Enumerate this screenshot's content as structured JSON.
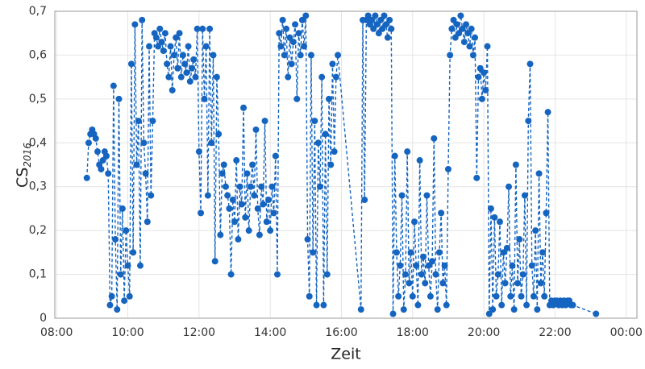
{
  "chart_data": {
    "type": "line",
    "x_label": "Zeit",
    "y_label": "CS",
    "y_label_subscript": "2016",
    "xlim": [
      7.95,
      24.3
    ],
    "ylim": [
      0,
      0.7
    ],
    "xticks": [
      {
        "value": 8,
        "label": "08:00"
      },
      {
        "value": 10,
        "label": "10:00"
      },
      {
        "value": 12,
        "label": "12:00"
      },
      {
        "value": 14,
        "label": "14:00"
      },
      {
        "value": 16,
        "label": "16:00"
      },
      {
        "value": 18,
        "label": "18:00"
      },
      {
        "value": 20,
        "label": "20:00"
      },
      {
        "value": 22,
        "label": "22:00"
      },
      {
        "value": 24,
        "label": "00:00"
      }
    ],
    "yticks": [
      0,
      {
        "value": 0.1,
        "label": "0,1"
      },
      {
        "value": 0.2,
        "label": "0,2"
      },
      {
        "value": 0.3,
        "label": "0,3"
      },
      {
        "value": 0.4,
        "label": "0,4"
      },
      {
        "value": 0.5,
        "label": "0,5"
      },
      {
        "value": 0.6,
        "label": "0,6"
      },
      {
        "value": 0.7,
        "label": "0,7"
      }
    ],
    "grid": true,
    "x": [
      8.85,
      8.9,
      8.95,
      9,
      9.05,
      9.1,
      9.15,
      9.2,
      9.25,
      9.3,
      9.35,
      9.4,
      9.45,
      9.5,
      9.55,
      9.6,
      9.65,
      9.7,
      9.75,
      9.8,
      9.85,
      9.9,
      9.95,
      10,
      10.05,
      10.1,
      10.15,
      10.2,
      10.25,
      10.3,
      10.35,
      10.4,
      10.45,
      10.5,
      10.55,
      10.6,
      10.65,
      10.7,
      10.75,
      10.8,
      10.85,
      10.9,
      10.95,
      11,
      11.05,
      11.1,
      11.15,
      11.2,
      11.25,
      11.3,
      11.35,
      11.4,
      11.45,
      11.5,
      11.55,
      11.6,
      11.65,
      11.7,
      11.75,
      11.8,
      11.85,
      11.9,
      11.95,
      12,
      12.05,
      12.1,
      12.15,
      12.2,
      12.25,
      12.3,
      12.35,
      12.4,
      12.45,
      12.5,
      12.55,
      12.6,
      12.65,
      12.7,
      12.75,
      12.8,
      12.85,
      12.9,
      12.95,
      13,
      13.05,
      13.1,
      13.15,
      13.2,
      13.25,
      13.3,
      13.35,
      13.4,
      13.45,
      13.5,
      13.55,
      13.6,
      13.65,
      13.7,
      13.75,
      13.8,
      13.85,
      13.9,
      13.95,
      14,
      14.05,
      14.1,
      14.15,
      14.2,
      14.25,
      14.3,
      14.35,
      14.4,
      14.45,
      14.5,
      14.55,
      14.6,
      14.65,
      14.7,
      14.75,
      14.8,
      14.85,
      14.9,
      14.95,
      15,
      15.05,
      15.1,
      15.15,
      15.2,
      15.25,
      15.3,
      15.35,
      15.4,
      15.45,
      15.5,
      15.55,
      15.6,
      15.65,
      15.7,
      15.75,
      15.8,
      15.85,
      15.9,
      16.55,
      16.6,
      16.65,
      16.7,
      16.75,
      16.8,
      16.85,
      16.9,
      16.95,
      17,
      17.05,
      17.1,
      17.15,
      17.2,
      17.25,
      17.3,
      17.35,
      17.4,
      17.45,
      17.5,
      17.55,
      17.6,
      17.65,
      17.7,
      17.75,
      17.8,
      17.85,
      17.9,
      17.95,
      18,
      18.05,
      18.1,
      18.15,
      18.2,
      18.25,
      18.3,
      18.35,
      18.4,
      18.45,
      18.5,
      18.55,
      18.6,
      18.65,
      18.7,
      18.75,
      18.8,
      18.85,
      18.9,
      18.95,
      19,
      19.05,
      19.1,
      19.15,
      19.2,
      19.25,
      19.3,
      19.35,
      19.4,
      19.45,
      19.5,
      19.55,
      19.6,
      19.65,
      19.7,
      19.75,
      19.8,
      19.85,
      19.9,
      19.95,
      20,
      20.05,
      20.1,
      20.15,
      20.2,
      20.25,
      20.3,
      20.35,
      20.4,
      20.45,
      20.5,
      20.55,
      20.6,
      20.65,
      20.7,
      20.75,
      20.8,
      20.85,
      20.9,
      20.95,
      21,
      21.05,
      21.1,
      21.15,
      21.2,
      21.25,
      21.3,
      21.35,
      21.4,
      21.45,
      21.5,
      21.55,
      21.6,
      21.65,
      21.7,
      21.75,
      21.8,
      21.85,
      21.9,
      21.95,
      22,
      22.05,
      22.1,
      22.15,
      22.2,
      22.25,
      22.3,
      22.35,
      22.4,
      22.45,
      22.5,
      23.15
    ],
    "series": [
      {
        "color": "#1565c0",
        "values": [
          0.32,
          0.4,
          0.42,
          0.43,
          0.42,
          0.41,
          0.38,
          0.35,
          0.34,
          0.36,
          0.38,
          0.37,
          0.33,
          0.03,
          0.05,
          0.53,
          0.18,
          0.02,
          0.5,
          0.1,
          0.25,
          0.04,
          0.2,
          0.12,
          0.05,
          0.58,
          0.15,
          0.67,
          0.35,
          0.45,
          0.12,
          0.68,
          0.4,
          0.33,
          0.22,
          0.62,
          0.28,
          0.45,
          0.65,
          0.64,
          0.62,
          0.66,
          0.63,
          0.61,
          0.65,
          0.58,
          0.55,
          0.62,
          0.52,
          0.6,
          0.64,
          0.57,
          0.65,
          0.55,
          0.6,
          0.58,
          0.56,
          0.62,
          0.54,
          0.57,
          0.59,
          0.55,
          0.66,
          0.38,
          0.24,
          0.66,
          0.5,
          0.62,
          0.28,
          0.66,
          0.4,
          0.6,
          0.13,
          0.55,
          0.42,
          0.19,
          0.33,
          0.35,
          0.3,
          0.28,
          0.25,
          0.1,
          0.27,
          0.22,
          0.36,
          0.18,
          0.3,
          0.26,
          0.48,
          0.23,
          0.33,
          0.2,
          0.3,
          0.35,
          0.28,
          0.43,
          0.25,
          0.19,
          0.3,
          0.26,
          0.45,
          0.22,
          0.27,
          0.2,
          0.3,
          0.24,
          0.37,
          0.1,
          0.65,
          0.62,
          0.68,
          0.6,
          0.66,
          0.55,
          0.64,
          0.58,
          0.63,
          0.67,
          0.5,
          0.65,
          0.6,
          0.68,
          0.62,
          0.69,
          0.18,
          0.05,
          0.6,
          0.15,
          0.45,
          0.03,
          0.4,
          0.3,
          0.55,
          0.03,
          0.42,
          0.1,
          0.5,
          0.35,
          0.58,
          0.38,
          0.55,
          0.6,
          0.02,
          0.68,
          0.27,
          0.68,
          0.69,
          0.67,
          0.68,
          0.66,
          0.69,
          0.67,
          0.65,
          0.68,
          0.66,
          0.69,
          0.67,
          0.64,
          0.68,
          0.66,
          0.01,
          0.37,
          0.15,
          0.05,
          0.12,
          0.28,
          0.02,
          0.1,
          0.38,
          0.08,
          0.15,
          0.05,
          0.22,
          0.12,
          0.03,
          0.36,
          0.1,
          0.14,
          0.08,
          0.28,
          0.12,
          0.05,
          0.13,
          0.41,
          0.1,
          0.02,
          0.15,
          0.24,
          0.08,
          0.12,
          0.03,
          0.34,
          0.6,
          0.66,
          0.68,
          0.64,
          0.67,
          0.65,
          0.69,
          0.66,
          0.63,
          0.67,
          0.65,
          0.62,
          0.66,
          0.6,
          0.64,
          0.32,
          0.55,
          0.57,
          0.5,
          0.56,
          0.52,
          0.62,
          0.01,
          0.25,
          0.02,
          0.23,
          0.05,
          0.1,
          0.22,
          0.03,
          0.15,
          0.08,
          0.16,
          0.3,
          0.05,
          0.12,
          0.02,
          0.35,
          0.08,
          0.18,
          0.05,
          0.1,
          0.28,
          0.03,
          0.45,
          0.58,
          0.12,
          0.05,
          0.2,
          0.02,
          0.33,
          0.08,
          0.15,
          0.05,
          0.24,
          0.47,
          0.03,
          0.04,
          0.03,
          0.04,
          0.04,
          0.03,
          0.04,
          0.03,
          0.04,
          0.03,
          0.04,
          0.04,
          0.03,
          0.03,
          0.01
        ]
      }
    ]
  }
}
